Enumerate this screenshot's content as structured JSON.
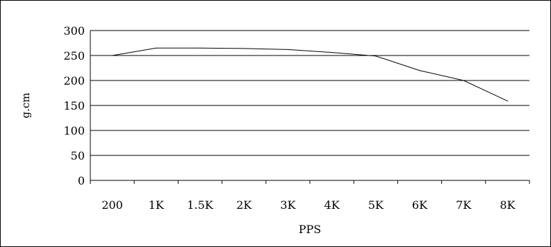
{
  "chart_data": {
    "type": "line",
    "title": "",
    "xlabel": "PPS",
    "ylabel": "g.cm",
    "categories": [
      "200",
      "1K",
      "1.5K",
      "2K",
      "3K",
      "4K",
      "5K",
      "6K",
      "7K",
      "8K"
    ],
    "yticks": [
      "0",
      "50",
      "100",
      "150",
      "200",
      "250",
      "300"
    ],
    "ylim": [
      0,
      300
    ],
    "grid": true,
    "legend": "none",
    "series": [
      {
        "values": [
          250,
          265,
          265,
          264,
          262,
          256,
          249,
          220,
          200,
          159
        ]
      }
    ],
    "colors": {
      "line": "#000000",
      "grid": "#000000",
      "background": "#ffffff"
    }
  }
}
